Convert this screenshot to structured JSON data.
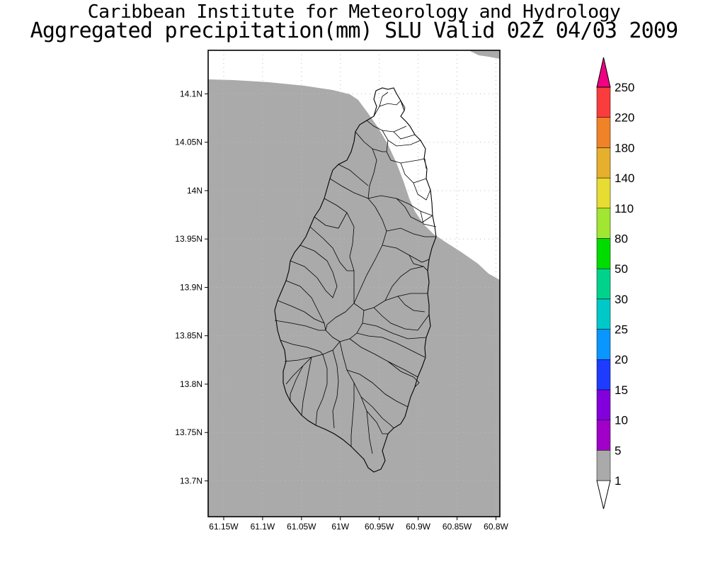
{
  "title": {
    "line1": "Caribbean Institute for Meteorology and Hydrology",
    "line2": "Aggregated precipitation(mm) SLU Valid 02Z 04/03 2009"
  },
  "map": {
    "lat_labels": [
      "14.1N",
      "14.05N",
      "14N",
      "13.95N",
      "13.9N",
      "13.85N",
      "13.8N",
      "13.75N",
      "13.7N"
    ],
    "lon_labels": [
      "61.15W",
      "61.1W",
      "61.05W",
      "61W",
      "60.95W",
      "60.9W",
      "60.85W",
      "60.8W"
    ],
    "lat_range": [
      13.663,
      14.145
    ],
    "lon_range": [
      -61.17,
      -60.795
    ],
    "colors": {
      "precip_fill": "#aaaaaa",
      "background": "#ffffff",
      "grid": "#bbbbbb"
    }
  },
  "colorbar": {
    "levels": [
      "1",
      "5",
      "10",
      "15",
      "20",
      "25",
      "30",
      "50",
      "80",
      "110",
      "140",
      "180",
      "220",
      "250"
    ],
    "colors": [
      "#aaaaaa",
      "#a000c8",
      "#8200dc",
      "#1e3cff",
      "#0a96ff",
      "#00c8c8",
      "#00d28c",
      "#00dc00",
      "#a0e632",
      "#e6dc32",
      "#e6af2d",
      "#f08228",
      "#fa3c3c",
      "#f00082"
    ],
    "bottom_color": "#ffffff"
  }
}
